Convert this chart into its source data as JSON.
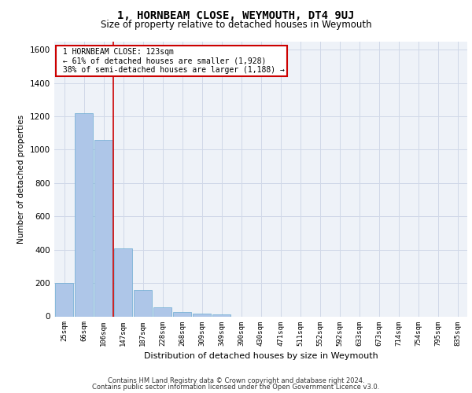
{
  "title": "1, HORNBEAM CLOSE, WEYMOUTH, DT4 9UJ",
  "subtitle": "Size of property relative to detached houses in Weymouth",
  "xlabel": "Distribution of detached houses by size in Weymouth",
  "ylabel": "Number of detached properties",
  "categories": [
    "25sqm",
    "66sqm",
    "106sqm",
    "147sqm",
    "187sqm",
    "228sqm",
    "268sqm",
    "309sqm",
    "349sqm",
    "390sqm",
    "430sqm",
    "471sqm",
    "511sqm",
    "552sqm",
    "592sqm",
    "633sqm",
    "673sqm",
    "714sqm",
    "754sqm",
    "795sqm",
    "835sqm"
  ],
  "values": [
    200,
    1220,
    1060,
    410,
    160,
    55,
    25,
    15,
    10,
    0,
    0,
    0,
    0,
    0,
    0,
    0,
    0,
    0,
    0,
    0,
    0
  ],
  "bar_color": "#aec6e8",
  "bar_edgecolor": "#6aabd2",
  "property_line_x": 2.5,
  "property_sqm": 123,
  "pct_smaller": 61,
  "n_smaller": 1928,
  "pct_larger_semi": 38,
  "n_larger_semi": 1188,
  "annotation_box_color": "#cc0000",
  "vline_color": "#cc0000",
  "ylim": [
    0,
    1650
  ],
  "yticks": [
    0,
    200,
    400,
    600,
    800,
    1000,
    1200,
    1400,
    1600
  ],
  "grid_color": "#d0d8e8",
  "background_color": "#eef2f8",
  "footer1": "Contains HM Land Registry data © Crown copyright and database right 2024.",
  "footer2": "Contains public sector information licensed under the Open Government Licence v3.0."
}
